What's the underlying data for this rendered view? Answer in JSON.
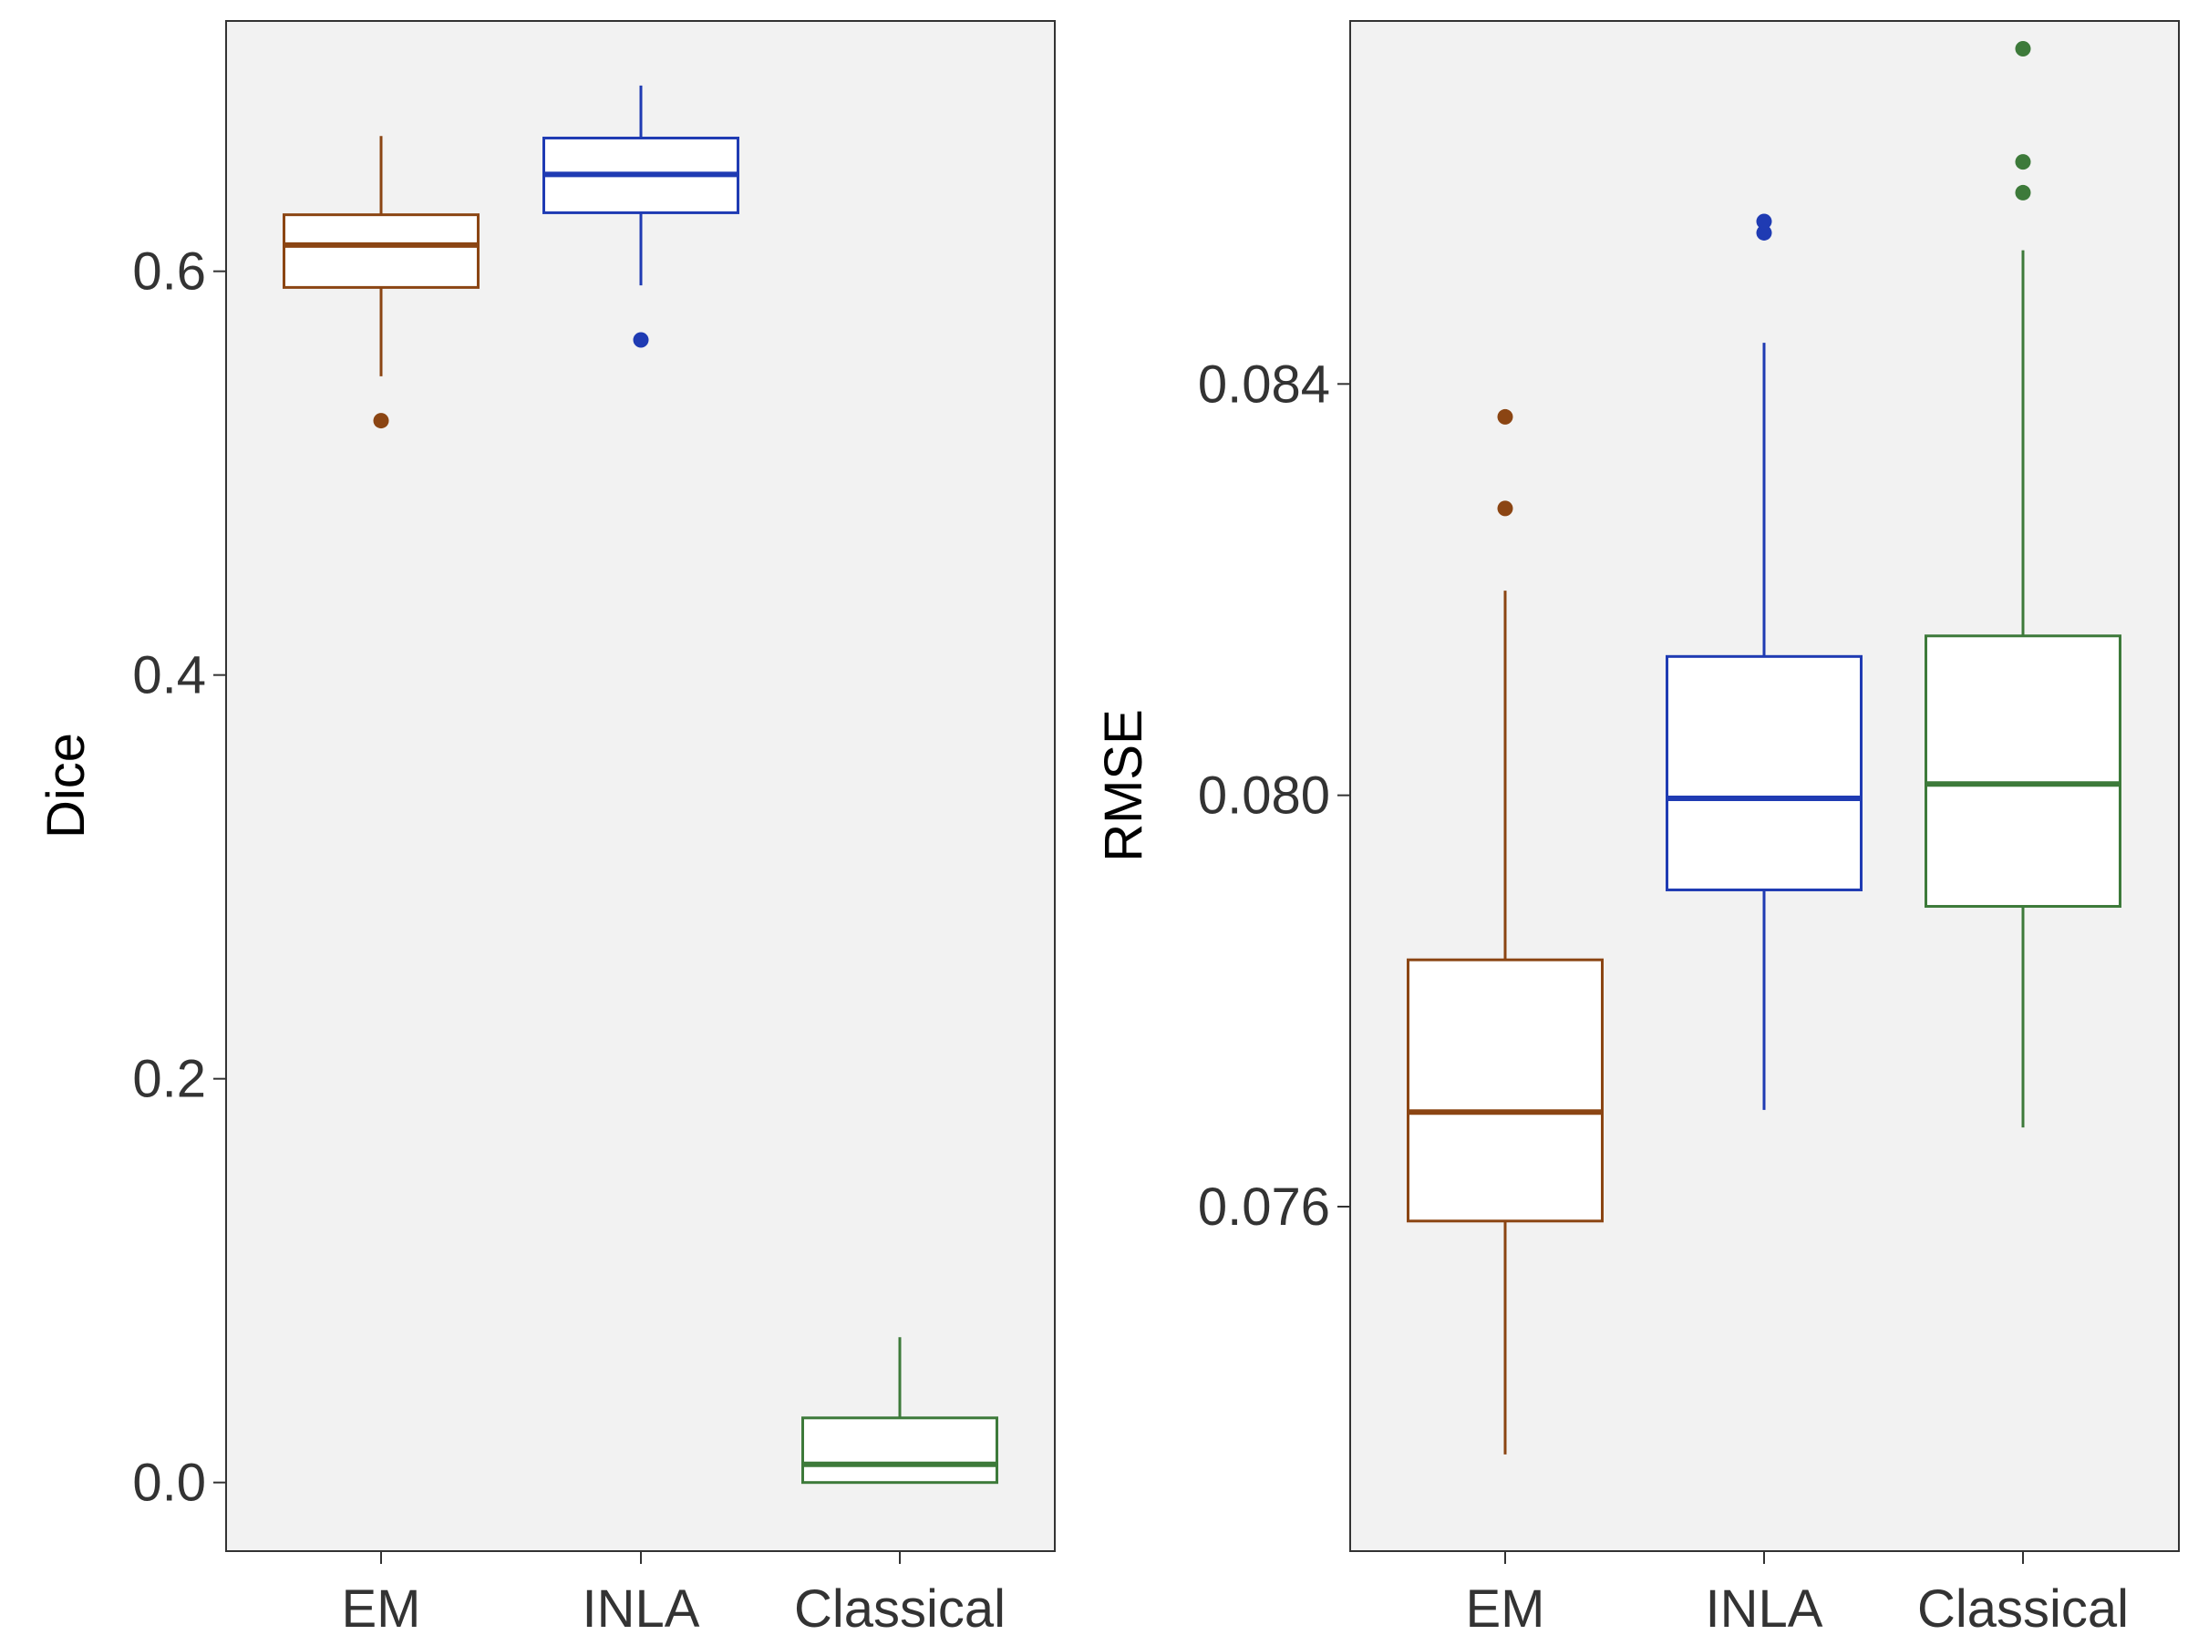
{
  "chart_data": [
    {
      "type": "box",
      "ylabel": "Dice",
      "xlabel": "",
      "ylim": [
        -0.034,
        0.724
      ],
      "yticks": [
        0.0,
        0.2,
        0.4,
        0.6
      ],
      "ytick_labels": [
        "0.0",
        "0.2",
        "0.4",
        "0.6"
      ],
      "grid": false,
      "categories": [
        "EM",
        "INLA",
        "Classical"
      ],
      "series": [
        {
          "name": "EM",
          "color": "#8B4513",
          "whisker_low": 0.548,
          "q1": 0.592,
          "median": 0.613,
          "q3": 0.628,
          "whisker_high": 0.667,
          "outliers": [
            0.526
          ]
        },
        {
          "name": "INLA",
          "color": "#1F3BB3",
          "whisker_low": 0.593,
          "q1": 0.629,
          "median": 0.648,
          "q3": 0.666,
          "whisker_high": 0.692,
          "outliers": [
            0.566
          ]
        },
        {
          "name": "Classical",
          "color": "#3D7A3A",
          "whisker_low": 0.0,
          "q1": 0.0,
          "median": 0.009,
          "q3": 0.032,
          "whisker_high": 0.072,
          "outliers": []
        }
      ]
    },
    {
      "type": "box",
      "ylabel": "RMSE",
      "xlabel": "",
      "ylim": [
        0.07265,
        0.08753
      ],
      "yticks": [
        0.076,
        0.08,
        0.084
      ],
      "ytick_labels": [
        "0.076",
        "0.080",
        "0.084"
      ],
      "grid": false,
      "categories": [
        "EM",
        "INLA",
        "Classical"
      ],
      "series": [
        {
          "name": "EM",
          "color": "#8B4513",
          "whisker_low": 0.07359,
          "q1": 0.07586,
          "median": 0.07692,
          "q3": 0.0784,
          "whisker_high": 0.08199,
          "outliers": [
            0.08279,
            0.08368
          ]
        },
        {
          "name": "INLA",
          "color": "#1F3BB3",
          "whisker_low": 0.07694,
          "q1": 0.07908,
          "median": 0.07997,
          "q3": 0.08135,
          "whisker_high": 0.0844,
          "outliers": [
            0.08547,
            0.08558
          ]
        },
        {
          "name": "Classical",
          "color": "#3D7A3A",
          "whisker_low": 0.07677,
          "q1": 0.07892,
          "median": 0.08011,
          "q3": 0.08155,
          "whisker_high": 0.0853,
          "outliers": [
            0.08586,
            0.08616,
            0.08726
          ]
        }
      ]
    }
  ]
}
